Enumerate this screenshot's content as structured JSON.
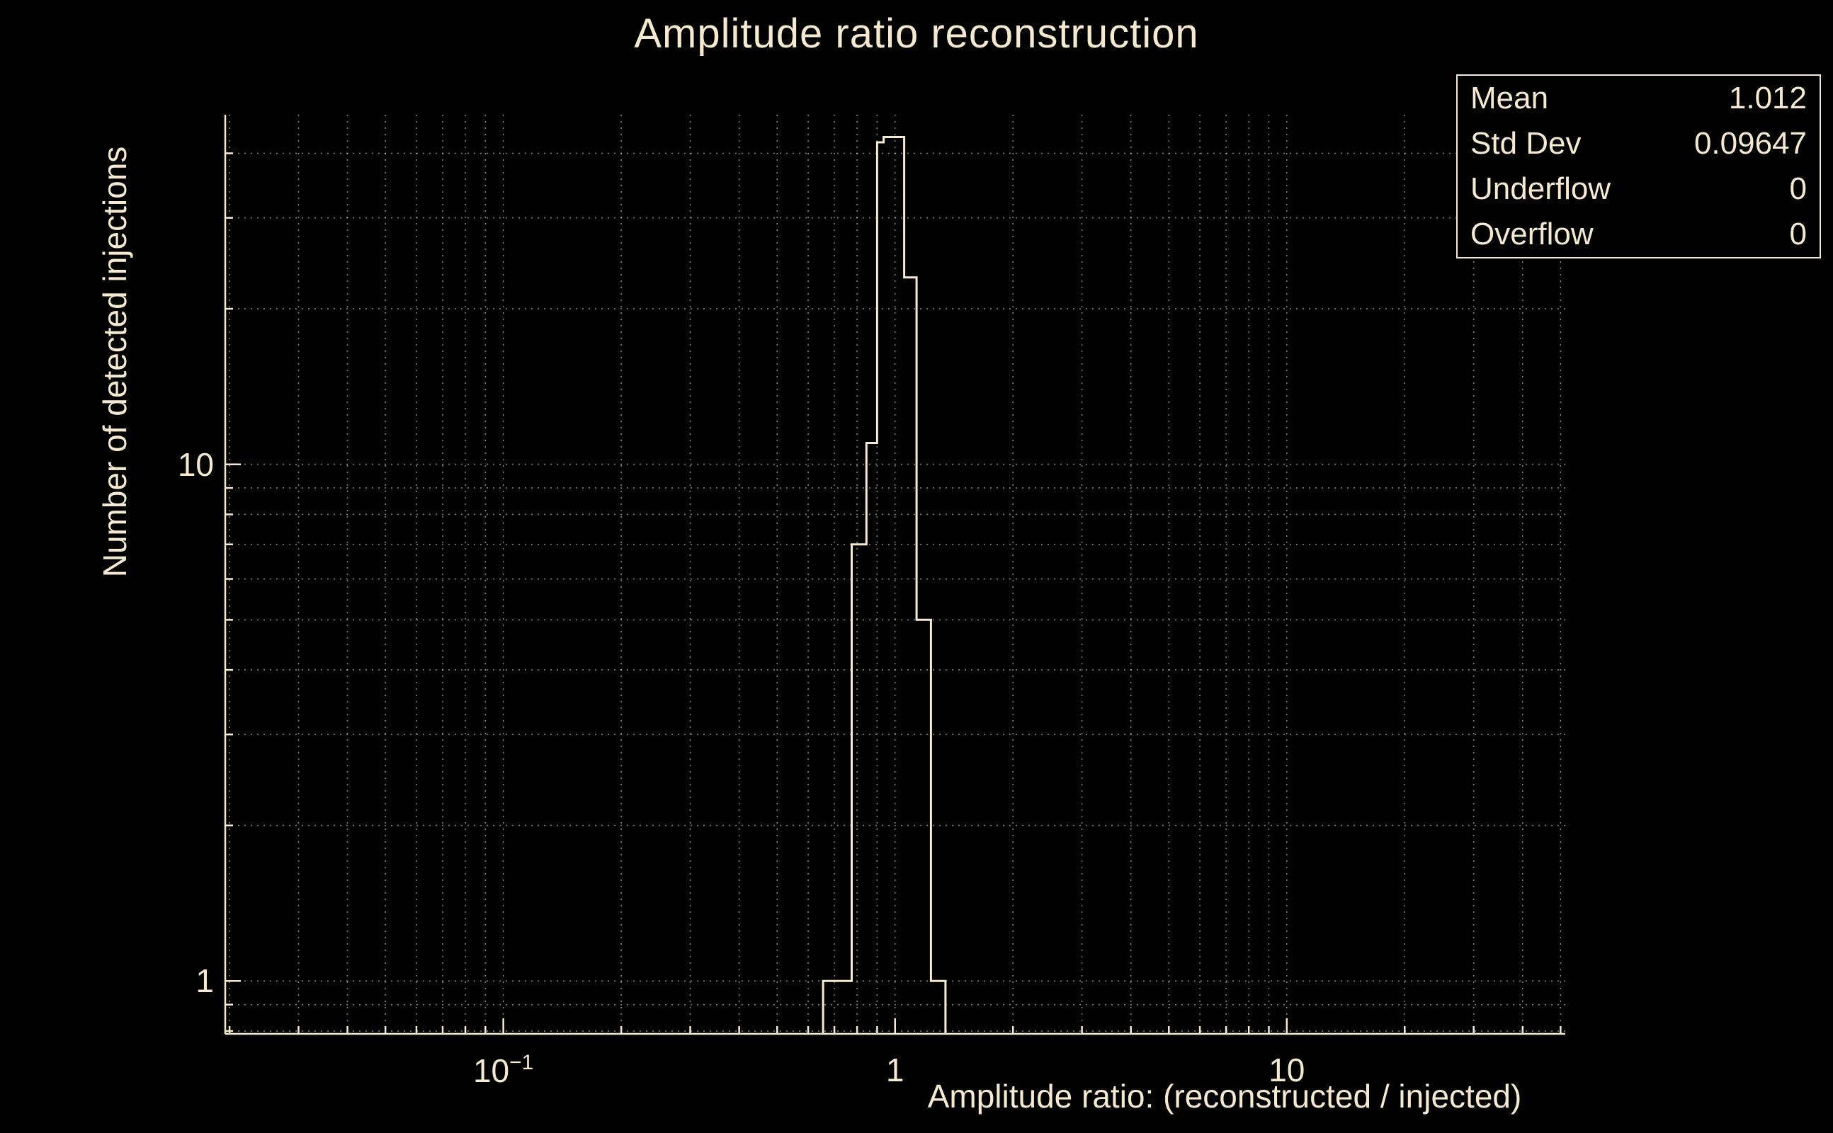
{
  "title": "Amplitude ratio reconstruction",
  "colors": {
    "background": "#000000",
    "foreground": "#f5ead0",
    "grid": "#f5ead0",
    "histogram": "#f5ead0"
  },
  "stats": {
    "rows": [
      {
        "label": "Mean",
        "value": "1.012"
      },
      {
        "label": "Std Dev",
        "value": "0.09647"
      },
      {
        "label": "Underflow",
        "value": "0"
      },
      {
        "label": "Overflow",
        "value": "0"
      }
    ]
  },
  "chart_data": {
    "type": "bar",
    "subtype": "step-histogram",
    "title": "Amplitude ratio reconstruction",
    "xlabel": "Amplitude ratio: (reconstructed / injected)",
    "ylabel": "Number of detected injections",
    "x_scale": "log",
    "y_scale": "log",
    "xlim": [
      0.0195,
      51.4
    ],
    "ylim": [
      0.79,
      47.5
    ],
    "grid": true,
    "legend": "none",
    "bin_edges": [
      0.655,
      0.775,
      0.845,
      0.9,
      0.935,
      1.055,
      1.135,
      1.235,
      1.345
    ],
    "counts": [
      1,
      7,
      11,
      42,
      43,
      23,
      5,
      1
    ],
    "x_ticks": [
      {
        "v": 0.1,
        "base": "10",
        "sup": "−1"
      },
      {
        "v": 1,
        "base": "1"
      },
      {
        "v": 10,
        "base": "10"
      }
    ],
    "y_ticks": [
      {
        "v": 1,
        "label": "1"
      },
      {
        "v": 10,
        "label": "10"
      }
    ]
  }
}
